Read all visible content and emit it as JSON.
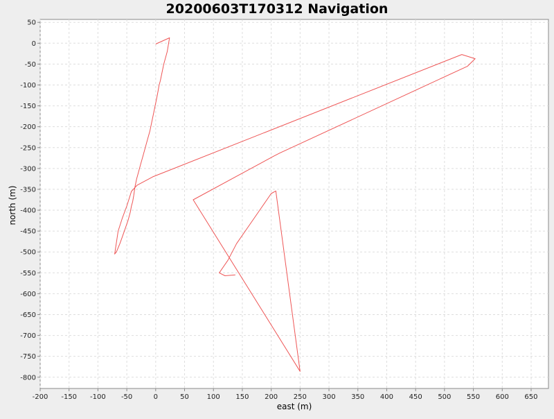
{
  "chart_data": {
    "type": "line",
    "title": "20200603T170312 Navigation",
    "xlabel": "east (m)",
    "ylabel": "north (m)",
    "xlim": [
      -200,
      680
    ],
    "ylim": [
      -827,
      57
    ],
    "xticks": [
      -200,
      -150,
      -100,
      -50,
      0,
      50,
      100,
      150,
      200,
      250,
      300,
      350,
      400,
      450,
      500,
      550,
      600,
      650
    ],
    "yticks": [
      50,
      0,
      -50,
      -100,
      -150,
      -200,
      -250,
      -300,
      -350,
      -400,
      -450,
      -500,
      -550,
      -600,
      -650,
      -700,
      -750,
      -800
    ],
    "grid": true,
    "line_color": "#ee5555",
    "background_color": "#ffffff",
    "series": [
      {
        "x": [
          0,
          24,
          20,
          17,
          14,
          11,
          8,
          6,
          4,
          2,
          -1,
          -4,
          -7,
          -10,
          -14,
          -18,
          -22,
          -26,
          -30,
          -33,
          -36,
          -38,
          -40,
          -42,
          -44,
          -48,
          -53,
          -58,
          -62,
          -65,
          -68,
          -71,
          -65,
          -58,
          -50,
          -42,
          -32,
          -5,
          530,
          553,
          540,
          215,
          205,
          65,
          250,
          208,
          200,
          180,
          160,
          140,
          125,
          110,
          120,
          138
        ],
        "y": [
          -2,
          13,
          -20,
          -35,
          -50,
          -70,
          -90,
          -100,
          -115,
          -130,
          -150,
          -170,
          -190,
          -210,
          -230,
          -250,
          -270,
          -290,
          -310,
          -325,
          -345,
          -365,
          -380,
          -390,
          -405,
          -425,
          -445,
          -465,
          -480,
          -490,
          -500,
          -505,
          -450,
          -420,
          -390,
          -355,
          -340,
          -320,
          -27,
          -37,
          -55,
          -263,
          -270,
          -375,
          -786,
          -354,
          -360,
          -400,
          -440,
          -480,
          -520,
          -550,
          -557,
          -555
        ]
      }
    ]
  }
}
